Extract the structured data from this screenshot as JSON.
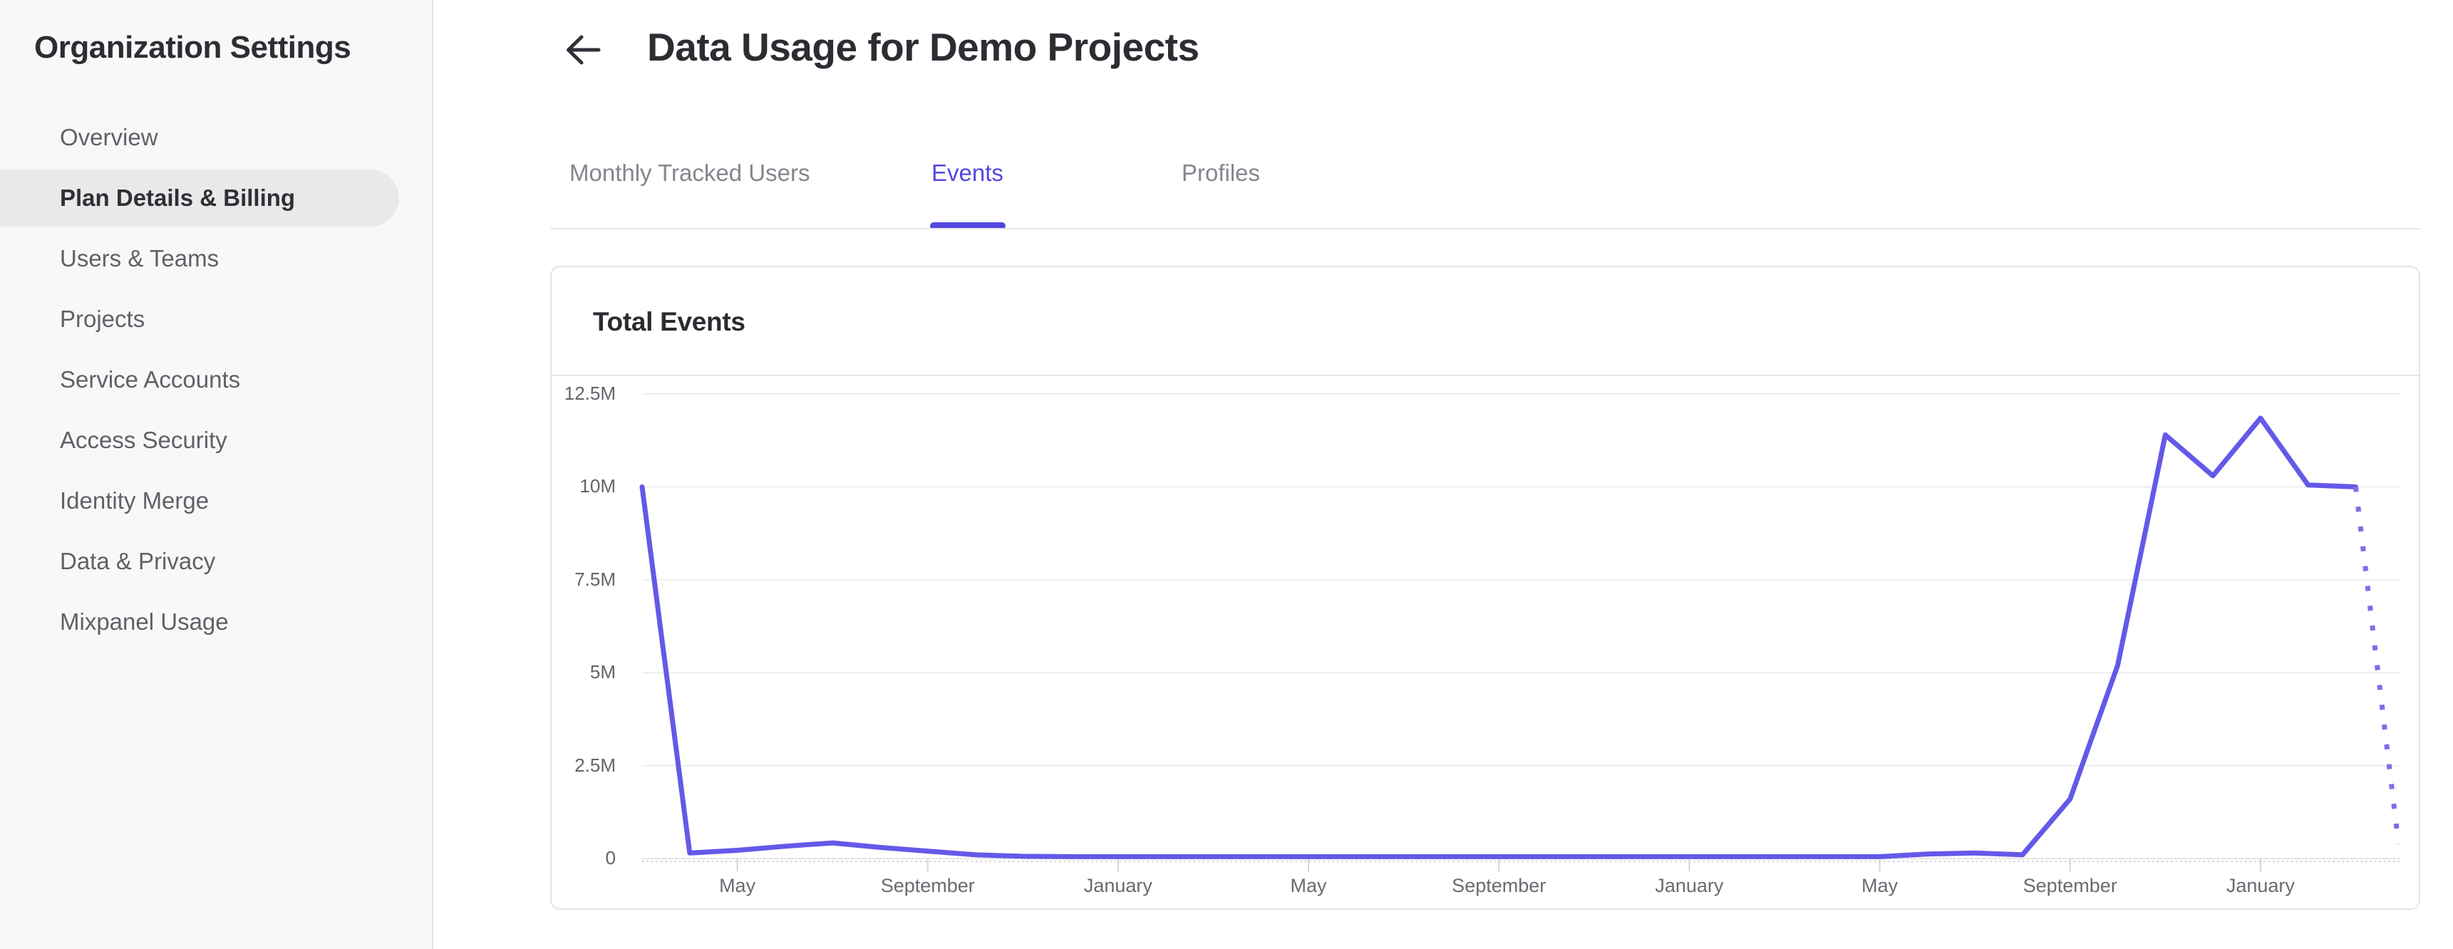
{
  "sidebar": {
    "title": "Organization Settings",
    "items": [
      {
        "label": "Overview",
        "selected": false
      },
      {
        "label": "Plan Details & Billing",
        "selected": true
      },
      {
        "label": "Users & Teams",
        "selected": false
      },
      {
        "label": "Projects",
        "selected": false
      },
      {
        "label": "Service Accounts",
        "selected": false
      },
      {
        "label": "Access Security",
        "selected": false
      },
      {
        "label": "Identity Merge",
        "selected": false
      },
      {
        "label": "Data & Privacy",
        "selected": false
      },
      {
        "label": "Mixpanel Usage",
        "selected": false
      }
    ]
  },
  "header": {
    "title": "Data Usage for Demo Projects",
    "back_icon": "arrow-left-icon"
  },
  "tabs": [
    {
      "label": "Monthly Tracked Users",
      "active": false
    },
    {
      "label": "Events",
      "active": true
    },
    {
      "label": "Profiles",
      "active": false
    }
  ],
  "colors": {
    "accent": "#5347e0",
    "line": "#6459e8",
    "line_projected": "#7a6fe9",
    "grid": "#ededef",
    "axis": "#e6e6e9",
    "sidebar_selected_bg": "#e9e9ea"
  },
  "chart_data": {
    "type": "line",
    "title": "Total Events",
    "series_name": "Total Events",
    "y_tick_labels": [
      "0",
      "2.5M",
      "5M",
      "7.5M",
      "10M",
      "12.5M"
    ],
    "y_tick_values": [
      0,
      2500000,
      5000000,
      7500000,
      10000000,
      12500000
    ],
    "ylim": [
      0,
      13000000
    ],
    "grid": "horizontal-only",
    "legend": "none",
    "x_tick_labels": [
      "May",
      "September",
      "January",
      "May",
      "September",
      "January",
      "May",
      "September",
      "January"
    ],
    "x_tick_month_indices": [
      2,
      6,
      10,
      14,
      18,
      22,
      26,
      30,
      34
    ],
    "months_per_point": 1,
    "solid_values": [
      10000000,
      150000,
      220000,
      330000,
      420000,
      300000,
      200000,
      100000,
      60000,
      50000,
      50000,
      50000,
      50000,
      50000,
      50000,
      50000,
      50000,
      50000,
      50000,
      50000,
      50000,
      50000,
      50000,
      50000,
      50000,
      50000,
      50000,
      120000,
      150000,
      100000,
      1600000,
      5200000,
      11400000,
      10300000,
      11850000,
      10050000,
      10000000
    ],
    "projected_point": {
      "month_index": 36.9,
      "value": 400000
    },
    "projected_style": "dotted"
  }
}
